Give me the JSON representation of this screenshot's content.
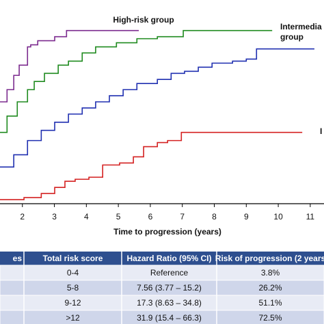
{
  "chart_data": {
    "type": "step",
    "xlabel": "Time to progression (years)",
    "xlim": [
      1.3,
      11.43
    ],
    "xticks": [
      2,
      3,
      4,
      5,
      6,
      7,
      8,
      9,
      10,
      11
    ],
    "ylim": [
      0,
      1
    ],
    "annotations": [
      "High-risk group",
      "Intermedia",
      "group",
      "I"
    ],
    "series": [
      {
        "color": "#7b2a8e",
        "x": [
          1.3,
          1.52,
          1.73,
          1.9,
          2.16,
          2.26,
          2.48,
          3.01,
          3.38,
          5.64
        ],
        "values": [
          0.5,
          0.56,
          0.63,
          0.68,
          0.77,
          0.78,
          0.8,
          0.82,
          0.85,
          0.85
        ]
      },
      {
        "color": "#1e8a1e",
        "x": [
          1.3,
          1.52,
          1.84,
          2.16,
          2.37,
          2.69,
          3.12,
          3.44,
          3.87,
          4.29,
          4.94,
          5.58,
          6.22,
          7.03,
          9.81
        ],
        "values": [
          0.35,
          0.43,
          0.5,
          0.56,
          0.6,
          0.64,
          0.68,
          0.7,
          0.74,
          0.77,
          0.79,
          0.81,
          0.82,
          0.85,
          0.85
        ]
      },
      {
        "color": "#1f2fb0",
        "x": [
          1.3,
          1.73,
          2.16,
          2.59,
          3.01,
          3.44,
          3.87,
          4.29,
          4.72,
          5.15,
          5.58,
          6.22,
          6.65,
          7.07,
          7.5,
          7.93,
          8.57,
          9.0,
          9.32,
          11.13
        ],
        "values": [
          0.18,
          0.24,
          0.31,
          0.36,
          0.4,
          0.44,
          0.47,
          0.5,
          0.53,
          0.56,
          0.59,
          0.61,
          0.64,
          0.65,
          0.67,
          0.69,
          0.7,
          0.71,
          0.76,
          0.76
        ]
      },
      {
        "color": "#d42020",
        "x": [
          1.3,
          2.05,
          2.59,
          3.01,
          3.33,
          3.65,
          4.08,
          4.51,
          5.04,
          5.47,
          5.79,
          6.22,
          6.54,
          6.97,
          10.75
        ],
        "values": [
          0.02,
          0.03,
          0.05,
          0.08,
          0.11,
          0.12,
          0.13,
          0.19,
          0.2,
          0.23,
          0.28,
          0.3,
          0.31,
          0.35,
          0.35
        ]
      }
    ]
  },
  "table": {
    "header": [
      "es",
      "Total risk score",
      "Hazard Ratio (95% CI)",
      "Risk of progression (2 years"
    ],
    "rows": [
      [
        "",
        "0-4",
        "Reference",
        "3.8%"
      ],
      [
        "",
        "5-8",
        "7.56 (3.77 – 15.2)",
        "26.2%"
      ],
      [
        "",
        "9-12",
        "17.3 (8.63 – 34.8)",
        "51.1%"
      ],
      [
        "",
        ">12",
        "31.9 (15.4 – 66.3)",
        "72.5%"
      ]
    ]
  }
}
